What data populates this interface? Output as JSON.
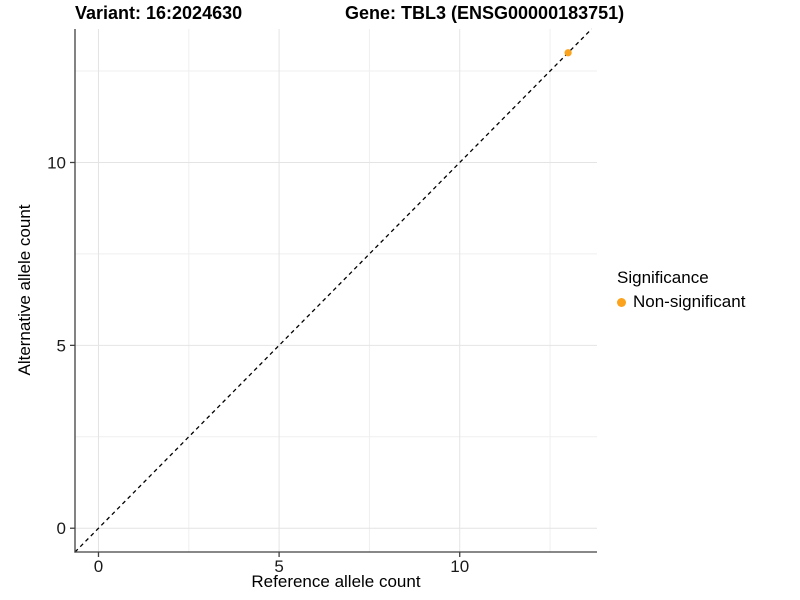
{
  "titles": {
    "variant": "Variant: 16:2024630",
    "gene": "Gene: TBL3 (ENSG00000183751)"
  },
  "axes": {
    "x_label": "Reference allele count",
    "y_label": "Alternative allele count"
  },
  "legend": {
    "title": "Significance",
    "items": [
      {
        "label": "Non-significant",
        "color": "#FBA31D"
      }
    ]
  },
  "colors": {
    "point": "#FBA31D",
    "axis_line": "#404040",
    "tick_mark": "#404040",
    "tick_label": "#1a1a1a",
    "grid_major": "#e4e4e4",
    "grid_minor": "#efefef",
    "diagonal_line": "#000000",
    "background": "#ffffff"
  },
  "chart_data": {
    "type": "scatter",
    "title": "Variant: 16:2024630 — Gene: TBL3 (ENSG00000183751)",
    "xlabel": "Reference allele count",
    "ylabel": "Alternative allele count",
    "xlim": [
      -0.65,
      13.8
    ],
    "ylim": [
      -0.65,
      13.65
    ],
    "x_ticks": [
      0,
      5,
      10
    ],
    "y_ticks": [
      0,
      5,
      10
    ],
    "x_minor_ticks": [
      2.5,
      7.5,
      12.5
    ],
    "y_minor_ticks": [
      2.5,
      7.5,
      12.5
    ],
    "grid": true,
    "legend_position": "right-center",
    "series": [
      {
        "name": "Non-significant",
        "color": "#FBA31D",
        "points": [
          [
            13,
            13
          ]
        ]
      }
    ],
    "reference_line": {
      "type": "identity-diagonal",
      "style": "dashed",
      "from": [
        -0.65,
        -0.65
      ],
      "to": [
        13.65,
        13.65
      ]
    }
  }
}
